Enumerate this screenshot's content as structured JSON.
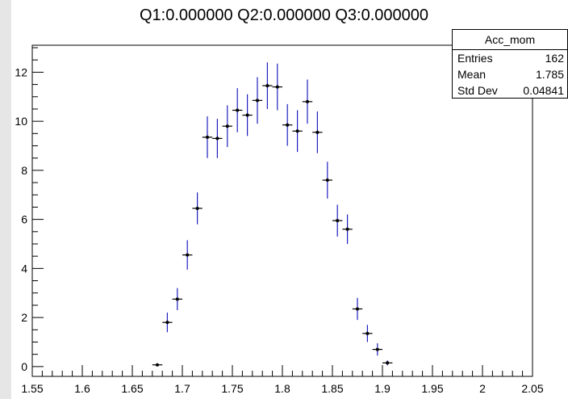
{
  "chart_data": {
    "type": "scatter",
    "title": "Q1:0.000000 Q2:0.000000 Q3:0.000000",
    "xlabel": "",
    "ylabel": "",
    "xlim": [
      1.55,
      2.05
    ],
    "ylim": [
      -0.4,
      13.1
    ],
    "xticks": [
      "1.55",
      "1.6",
      "1.65",
      "1.7",
      "1.75",
      "1.8",
      "1.85",
      "1.9",
      "1.95",
      "2",
      "2.05"
    ],
    "xtick_values": [
      1.55,
      1.6,
      1.65,
      1.7,
      1.75,
      1.8,
      1.85,
      1.9,
      1.95,
      2.0,
      2.05
    ],
    "yticks": [
      "0",
      "2",
      "4",
      "6",
      "8",
      "10",
      "12"
    ],
    "ytick_values": [
      0,
      2,
      4,
      6,
      8,
      10,
      12
    ],
    "grid": false,
    "series": [
      {
        "x": [
          1.675,
          1.685,
          1.695,
          1.705,
          1.715,
          1.725,
          1.735,
          1.745,
          1.755,
          1.765,
          1.775,
          1.785,
          1.795,
          1.805,
          1.815,
          1.825,
          1.835,
          1.845,
          1.855,
          1.865,
          1.875,
          1.885,
          1.895,
          1.905
        ],
        "y": [
          0.07,
          1.8,
          2.75,
          4.55,
          6.45,
          9.35,
          9.3,
          9.8,
          10.45,
          10.25,
          10.85,
          11.45,
          11.4,
          9.85,
          9.6,
          10.8,
          9.55,
          7.6,
          5.95,
          5.6,
          2.35,
          1.35,
          0.7,
          0.15
        ],
        "y_err": [
          0.05,
          0.4,
          0.45,
          0.6,
          0.65,
          0.85,
          0.8,
          0.85,
          0.9,
          0.85,
          0.95,
          0.95,
          0.95,
          0.85,
          0.85,
          0.9,
          0.85,
          0.75,
          0.65,
          0.6,
          0.45,
          0.35,
          0.25,
          0.1
        ],
        "x_halfwidth": 0.005,
        "marker_color": "#000000",
        "errorbar_color": "#1f1fbf"
      }
    ]
  },
  "stats": {
    "name": "Acc_mom",
    "rows": [
      {
        "label": "Entries",
        "value": "162"
      },
      {
        "label": "Mean",
        "value": "1.785"
      },
      {
        "label": "Std Dev",
        "value": "0.04841"
      }
    ]
  },
  "colors": {
    "background": "#ffffff",
    "edge": "#e6e6e6",
    "axis": "#000000",
    "errorbar": "#1f1fbf"
  }
}
